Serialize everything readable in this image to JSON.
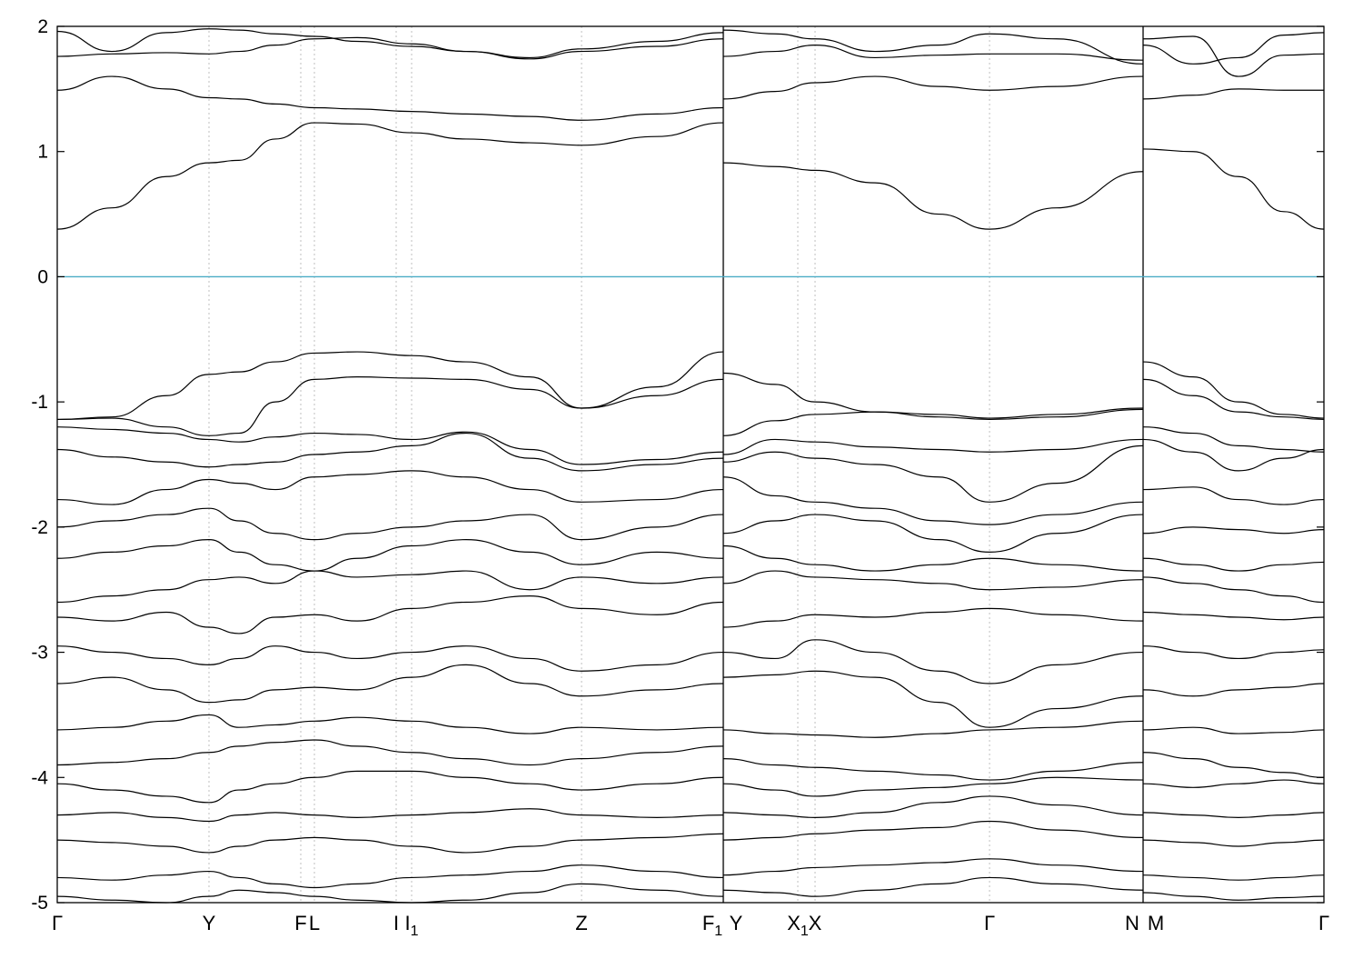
{
  "chart_data": {
    "type": "line",
    "title": "",
    "xlabel": "",
    "ylabel": "",
    "ylim": [
      -5,
      2
    ],
    "yticks": [
      2,
      1,
      0,
      -1,
      -2,
      -3,
      -4,
      -5
    ],
    "ytick_labels": [
      "2",
      "1",
      "0",
      "-1",
      "-2",
      "-3",
      "-4",
      "-5"
    ],
    "grid": "vertical-dashed-at-high-symmetry-points",
    "fermi_level": 0,
    "colors": {
      "bands": "#000000",
      "fermi": "#4bacc6",
      "grid": "#b0b0b0"
    },
    "xlim": [
      0,
      1394
    ],
    "high_symmetry_points": [
      {
        "x": 0,
        "label": "Γ",
        "sub": ""
      },
      {
        "x": 167,
        "label": "Y",
        "sub": ""
      },
      {
        "x": 268,
        "label": "F",
        "sub": ""
      },
      {
        "x": 283,
        "label": "L",
        "sub": ""
      },
      {
        "x": 373,
        "label": "I",
        "sub": ""
      },
      {
        "x": 390,
        "label": "I",
        "sub": "1"
      },
      {
        "x": 577,
        "label": "Z",
        "sub": ""
      },
      {
        "x": 733,
        "label": "F",
        "sub": "1"
      },
      {
        "x": 733,
        "label": "Y",
        "sub": ""
      },
      {
        "x": 815,
        "label": "X",
        "sub": "1"
      },
      {
        "x": 834,
        "label": "X",
        "sub": ""
      },
      {
        "x": 1026,
        "label": "Γ",
        "sub": ""
      },
      {
        "x": 1195,
        "label": "N",
        "sub": ""
      },
      {
        "x": 1195,
        "label": "M",
        "sub": ""
      },
      {
        "x": 1394,
        "label": "Γ",
        "sub": ""
      }
    ],
    "segments": [
      0,
      733,
      1195,
      1394
    ],
    "series": [
      {
        "values": [
          -1.14,
          -1.12,
          -0.95,
          -0.78,
          -0.76,
          -0.68,
          -0.61,
          -0.6,
          -0.63,
          -0.68,
          -0.8,
          -1.05,
          -0.88,
          -0.6,
          -0.77,
          -0.86,
          -1.0,
          -1.08,
          -1.1,
          -1.13,
          -1.1,
          -1.05,
          -0.68,
          -0.8,
          -1.0,
          -1.1,
          -1.13
        ]
      },
      {
        "values": [
          -1.14,
          -1.13,
          -1.2,
          -1.27,
          -1.25,
          -1.0,
          -0.82,
          -0.8,
          -0.81,
          -0.82,
          -0.9,
          -1.05,
          -0.95,
          -0.82,
          -1.27,
          -1.15,
          -1.1,
          -1.08,
          -1.12,
          -1.14,
          -1.12,
          -1.06,
          -0.82,
          -0.95,
          -1.08,
          -1.12,
          -1.14
        ]
      },
      {
        "values": [
          0.38,
          0.55,
          0.8,
          0.91,
          0.93,
          1.1,
          1.23,
          1.22,
          1.15,
          1.1,
          1.07,
          1.05,
          1.12,
          1.23,
          0.91,
          0.88,
          0.85,
          0.75,
          0.5,
          0.38,
          0.55,
          0.84,
          1.02,
          1.0,
          0.8,
          0.52,
          0.38
        ]
      },
      {
        "values": [
          1.49,
          1.6,
          1.5,
          1.43,
          1.42,
          1.38,
          1.35,
          1.34,
          1.32,
          1.3,
          1.28,
          1.25,
          1.3,
          1.35,
          1.42,
          1.48,
          1.55,
          1.6,
          1.52,
          1.49,
          1.52,
          1.6,
          1.42,
          1.45,
          1.5,
          1.49,
          1.49
        ]
      },
      {
        "values": [
          1.76,
          1.78,
          1.79,
          1.78,
          1.8,
          1.85,
          1.9,
          1.91,
          1.86,
          1.8,
          1.74,
          1.8,
          1.84,
          1.9,
          1.76,
          1.8,
          1.85,
          1.75,
          1.77,
          1.78,
          1.78,
          1.73,
          1.9,
          1.92,
          1.6,
          1.77,
          1.78
        ]
      },
      {
        "values": [
          1.96,
          1.8,
          1.95,
          1.98,
          1.97,
          1.94,
          1.92,
          1.88,
          1.84,
          1.8,
          1.75,
          1.82,
          1.88,
          1.95,
          1.97,
          1.94,
          1.9,
          1.8,
          1.85,
          1.94,
          1.9,
          1.7,
          1.85,
          1.7,
          1.75,
          1.93,
          1.95
        ]
      },
      {
        "values": [
          -1.2,
          -1.22,
          -1.25,
          -1.3,
          -1.32,
          -1.28,
          -1.25,
          -1.26,
          -1.3,
          -1.24,
          -1.38,
          -1.5,
          -1.46,
          -1.4,
          -1.42,
          -1.3,
          -1.32,
          -1.36,
          -1.38,
          -1.4,
          -1.38,
          -1.3,
          -1.2,
          -1.25,
          -1.35,
          -1.38,
          -1.4
        ]
      },
      {
        "values": [
          -1.38,
          -1.44,
          -1.48,
          -1.52,
          -1.5,
          -1.48,
          -1.42,
          -1.4,
          -1.35,
          -1.25,
          -1.45,
          -1.55,
          -1.5,
          -1.45,
          -1.48,
          -1.4,
          -1.45,
          -1.5,
          -1.6,
          -1.8,
          -1.65,
          -1.35,
          -1.3,
          -1.4,
          -1.55,
          -1.45,
          -1.38
        ]
      },
      {
        "values": [
          -1.78,
          -1.82,
          -1.7,
          -1.62,
          -1.65,
          -1.7,
          -1.6,
          -1.58,
          -1.55,
          -1.6,
          -1.7,
          -1.8,
          -1.78,
          -1.7,
          -1.6,
          -1.75,
          -1.8,
          -1.85,
          -1.95,
          -1.98,
          -1.9,
          -1.8,
          -1.7,
          -1.68,
          -1.78,
          -1.82,
          -1.78
        ]
      },
      {
        "values": [
          -2.0,
          -1.95,
          -1.9,
          -1.85,
          -1.95,
          -2.05,
          -2.1,
          -2.05,
          -2.0,
          -1.95,
          -1.9,
          -2.1,
          -2.0,
          -1.9,
          -2.05,
          -1.95,
          -1.9,
          -1.95,
          -2.1,
          -2.2,
          -2.05,
          -1.9,
          -2.05,
          -2.0,
          -2.02,
          -2.05,
          -2.02
        ]
      },
      {
        "values": [
          -2.25,
          -2.2,
          -2.15,
          -2.1,
          -2.2,
          -2.3,
          -2.35,
          -2.25,
          -2.15,
          -2.1,
          -2.2,
          -2.3,
          -2.2,
          -2.25,
          -2.15,
          -2.25,
          -2.3,
          -2.35,
          -2.3,
          -2.25,
          -2.3,
          -2.35,
          -2.25,
          -2.3,
          -2.35,
          -2.3,
          -2.28
        ]
      },
      {
        "values": [
          -2.6,
          -2.55,
          -2.5,
          -2.42,
          -2.4,
          -2.45,
          -2.35,
          -2.4,
          -2.38,
          -2.35,
          -2.5,
          -2.4,
          -2.45,
          -2.4,
          -2.45,
          -2.35,
          -2.4,
          -2.42,
          -2.45,
          -2.5,
          -2.48,
          -2.42,
          -2.4,
          -2.45,
          -2.5,
          -2.55,
          -2.6
        ]
      },
      {
        "values": [
          -2.72,
          -2.75,
          -2.68,
          -2.8,
          -2.85,
          -2.72,
          -2.7,
          -2.75,
          -2.65,
          -2.6,
          -2.55,
          -2.65,
          -2.7,
          -2.6,
          -2.8,
          -2.75,
          -2.7,
          -2.72,
          -2.68,
          -2.65,
          -2.7,
          -2.75,
          -2.68,
          -2.7,
          -2.72,
          -2.74,
          -2.72
        ]
      },
      {
        "values": [
          -2.95,
          -3.0,
          -3.05,
          -3.1,
          -3.05,
          -2.95,
          -3.0,
          -3.05,
          -3.0,
          -2.95,
          -3.05,
          -3.15,
          -3.1,
          -3.0,
          -3.0,
          -3.05,
          -2.9,
          -3.0,
          -3.15,
          -3.25,
          -3.1,
          -3.0,
          -2.95,
          -3.0,
          -3.05,
          -3.0,
          -2.98
        ]
      },
      {
        "values": [
          -3.25,
          -3.2,
          -3.3,
          -3.4,
          -3.38,
          -3.3,
          -3.28,
          -3.3,
          -3.2,
          -3.1,
          -3.25,
          -3.35,
          -3.3,
          -3.25,
          -3.2,
          -3.18,
          -3.15,
          -3.2,
          -3.4,
          -3.6,
          -3.45,
          -3.35,
          -3.3,
          -3.35,
          -3.3,
          -3.28,
          -3.25
        ]
      },
      {
        "values": [
          -3.62,
          -3.6,
          -3.55,
          -3.5,
          -3.6,
          -3.58,
          -3.55,
          -3.52,
          -3.55,
          -3.6,
          -3.65,
          -3.6,
          -3.62,
          -3.6,
          -3.62,
          -3.65,
          -3.66,
          -3.68,
          -3.65,
          -3.62,
          -3.6,
          -3.55,
          -3.62,
          -3.6,
          -3.65,
          -3.64,
          -3.62
        ]
      },
      {
        "values": [
          -3.9,
          -3.88,
          -3.85,
          -3.8,
          -3.75,
          -3.72,
          -3.7,
          -3.75,
          -3.8,
          -3.85,
          -3.9,
          -3.85,
          -3.8,
          -3.75,
          -3.85,
          -3.9,
          -3.92,
          -3.95,
          -3.98,
          -4.02,
          -3.95,
          -3.88,
          -3.8,
          -3.85,
          -3.92,
          -3.96,
          -4.0
        ]
      },
      {
        "values": [
          -4.05,
          -4.1,
          -4.15,
          -4.2,
          -4.1,
          -4.05,
          -4.0,
          -3.95,
          -3.95,
          -4.0,
          -4.05,
          -4.1,
          -4.05,
          -4.0,
          -4.05,
          -4.1,
          -4.15,
          -4.1,
          -4.08,
          -4.05,
          -4.0,
          -4.02,
          -4.05,
          -4.08,
          -4.05,
          -4.02,
          -4.05
        ]
      },
      {
        "values": [
          -4.3,
          -4.28,
          -4.32,
          -4.35,
          -4.3,
          -4.28,
          -4.3,
          -4.32,
          -4.3,
          -4.28,
          -4.25,
          -4.3,
          -4.32,
          -4.3,
          -4.28,
          -4.3,
          -4.32,
          -4.28,
          -4.2,
          -4.15,
          -4.22,
          -4.3,
          -4.28,
          -4.3,
          -4.32,
          -4.3,
          -4.28
        ]
      },
      {
        "values": [
          -4.5,
          -4.52,
          -4.55,
          -4.6,
          -4.55,
          -4.5,
          -4.48,
          -4.5,
          -4.55,
          -4.6,
          -4.55,
          -4.5,
          -4.48,
          -4.45,
          -4.5,
          -4.48,
          -4.45,
          -4.42,
          -4.4,
          -4.35,
          -4.42,
          -4.48,
          -4.5,
          -4.52,
          -4.55,
          -4.52,
          -4.5
        ]
      },
      {
        "values": [
          -4.8,
          -4.82,
          -4.78,
          -4.75,
          -4.8,
          -4.85,
          -4.88,
          -4.85,
          -4.8,
          -4.78,
          -4.75,
          -4.7,
          -4.75,
          -4.8,
          -4.78,
          -4.75,
          -4.72,
          -4.7,
          -4.68,
          -4.65,
          -4.7,
          -4.75,
          -4.78,
          -4.8,
          -4.82,
          -4.8,
          -4.78
        ]
      },
      {
        "values": [
          -4.95,
          -4.98,
          -5.0,
          -4.95,
          -4.9,
          -4.92,
          -4.95,
          -4.98,
          -5.0,
          -4.98,
          -4.92,
          -4.85,
          -4.9,
          -4.95,
          -4.9,
          -4.92,
          -4.95,
          -4.9,
          -4.85,
          -4.8,
          -4.85,
          -4.9,
          -4.92,
          -4.95,
          -4.98,
          -4.96,
          -4.95
        ]
      }
    ],
    "series_x": [
      0,
      60,
      120,
      167,
      200,
      240,
      283,
      330,
      390,
      450,
      520,
      577,
      660,
      733,
      733,
      790,
      834,
      900,
      970,
      1026,
      1100,
      1195,
      1195,
      1250,
      1300,
      1350,
      1394
    ]
  }
}
